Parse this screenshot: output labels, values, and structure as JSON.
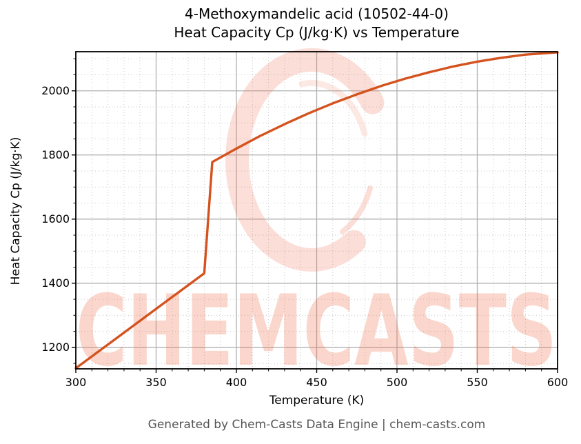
{
  "title_line1": "4-Methoxymandelic acid (10502-44-0)",
  "title_line2": "Heat Capacity Cp (J/kg·K) vs Temperature",
  "footer_text": "Generated by Chem-Casts Data Engine | chem-casts.com",
  "watermark": {
    "text": "CHEMCASTS",
    "color": "#ee6a45",
    "text_opacity": 0.27,
    "logo_opacity": 0.21
  },
  "colors": {
    "line": "#d4521e",
    "grid_major": "#b0b0b0",
    "grid_minor": "#c9c9c9",
    "spine": "#000000",
    "tick": "#000000",
    "footer": "#555555"
  },
  "chart_data": {
    "type": "line",
    "title": "4-Methoxymandelic acid (10502-44-0) Heat Capacity Cp (J/kg·K) vs Temperature",
    "xlabel": "Temperature (K)",
    "ylabel": "Heat Capacity Cp (J/kg·K)",
    "xlim": [
      300,
      600
    ],
    "ylim": [
      1133,
      2122
    ],
    "xticks": [
      300,
      350,
      400,
      450,
      500,
      550,
      600
    ],
    "yticks": [
      1200,
      1400,
      1600,
      1800,
      2000
    ],
    "x_minor_step": 10,
    "y_minor_step": 50,
    "grid": "major solid gray, minor dotted, full box spines, ticks bottom-left",
    "legend": "none",
    "annotation": "phase-change jump between 380 K and 385 K",
    "series": [
      {
        "name": "Heat Capacity Cp",
        "x": [
          300,
          320,
          340,
          360,
          380,
          385,
          400,
          415,
          430,
          445,
          460,
          475,
          490,
          505,
          520,
          535,
          550,
          565,
          580,
          600
        ],
        "y": [
          1135,
          1209,
          1283,
          1357,
          1431,
          1778,
          1820,
          1860,
          1896,
          1930,
          1961,
          1989,
          2015,
          2038,
          2058,
          2076,
          2091,
          2103,
          2113,
          2120
        ]
      }
    ]
  }
}
